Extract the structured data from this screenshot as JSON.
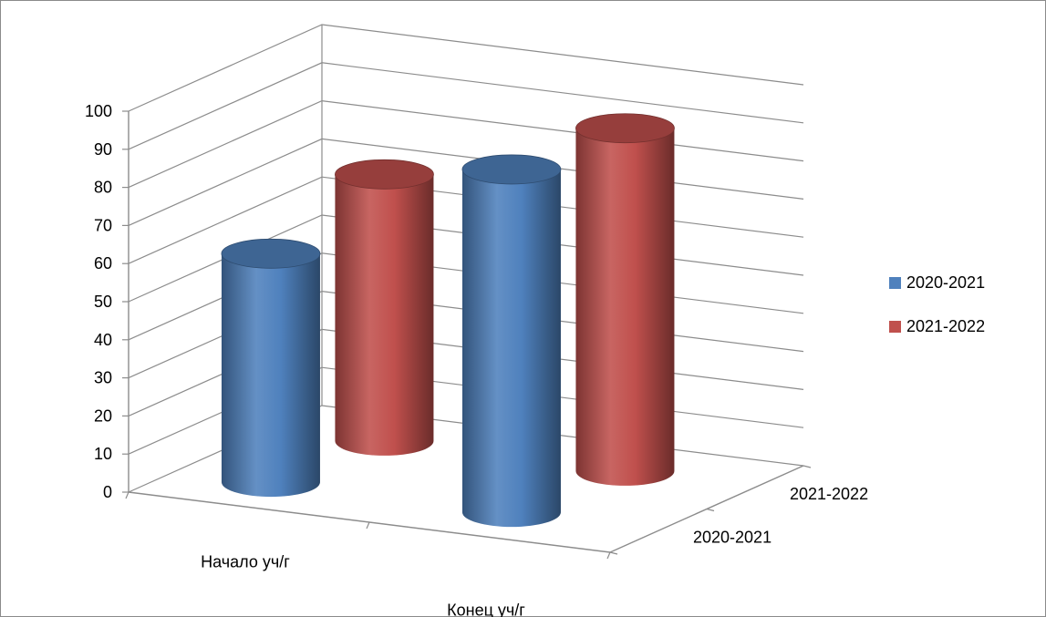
{
  "chart_data": {
    "type": "bar",
    "subtype": "3d-cylinder",
    "title": "",
    "xlabel": "",
    "ylabel": "",
    "categories": [
      "Начало уч/г",
      "Конец уч/г"
    ],
    "series": [
      {
        "name": "2020-2021",
        "values": [
          60,
          90
        ],
        "color": "#4f81bd"
      },
      {
        "name": "2021-2022",
        "values": [
          70,
          90
        ],
        "color": "#c0504d"
      }
    ],
    "depth_labels": [
      "2020-2021",
      "2021-2022"
    ],
    "y_ticks": [
      "0",
      "10",
      "20",
      "30",
      "40",
      "50",
      "60",
      "70",
      "80",
      "90",
      "100"
    ],
    "ylim": [
      0,
      100
    ],
    "grid": true,
    "legend": {
      "position": "right",
      "entries": [
        {
          "label": "2020-2021",
          "color": "#4f81bd"
        },
        {
          "label": "2021-2022",
          "color": "#c0504d"
        }
      ]
    }
  }
}
